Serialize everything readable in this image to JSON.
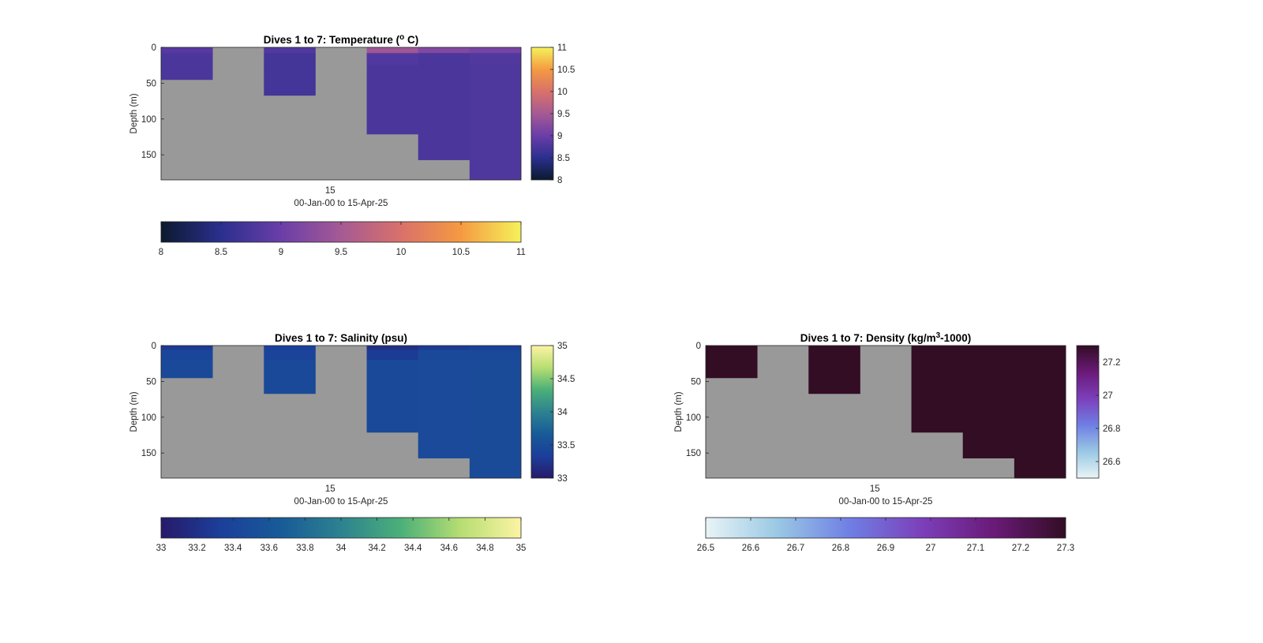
{
  "chart_data": [
    {
      "type": "heatmap",
      "title": "Dives 1 to 7: Temperature (",
      "title_sup": "o",
      "title_end": " C)",
      "ylabel": "Depth (m)",
      "xtick_label": "15",
      "xlabel": "00-Jan-00 to 15-Apr-25",
      "ylim": [
        0,
        185
      ],
      "y_reversed": true,
      "y_ticks": [
        0,
        50,
        100,
        150
      ],
      "n_columns": 7,
      "dive_max_depth": [
        45,
        0,
        67,
        0,
        121,
        157,
        185
      ],
      "background_color": "#999999",
      "value_layers": [
        {
          "top": 0,
          "bottom": 8,
          "values": [
            8.85,
            null,
            8.8,
            null,
            9.45,
            9.2,
            9.1
          ]
        },
        {
          "top": 8,
          "bottom": 25,
          "values": [
            8.75,
            null,
            8.7,
            null,
            8.8,
            8.75,
            8.8
          ]
        },
        {
          "top": 25,
          "bottom": 185,
          "values": [
            8.75,
            null,
            8.7,
            null,
            8.75,
            8.75,
            8.78
          ]
        }
      ],
      "colorbar": {
        "right": {
          "ticks": [
            8,
            8.5,
            9,
            9.5,
            10,
            10.5,
            11
          ],
          "range": [
            8,
            11
          ]
        },
        "bottom": {
          "ticks": [
            8,
            8.5,
            9,
            9.5,
            10,
            10.5,
            11
          ],
          "range": [
            8,
            11
          ]
        },
        "colormap": [
          "#0b1a2e",
          "#2b2f8e",
          "#6a3ea8",
          "#a55a94",
          "#d9716a",
          "#f59a42",
          "#f5f25a"
        ]
      }
    },
    {
      "type": "heatmap",
      "title": "Dives 1 to 7: Salinity (psu)",
      "ylabel": "Depth (m)",
      "xtick_label": "15",
      "xlabel": "00-Jan-00 to 15-Apr-25",
      "ylim": [
        0,
        185
      ],
      "y_reversed": true,
      "y_ticks": [
        0,
        50,
        100,
        150
      ],
      "n_columns": 7,
      "dive_max_depth": [
        45,
        0,
        67,
        0,
        121,
        157,
        185
      ],
      "background_color": "#999999",
      "value_layers": [
        {
          "top": 0,
          "bottom": 6,
          "values": [
            33.3,
            null,
            33.35,
            null,
            33.2,
            33.3,
            33.35
          ]
        },
        {
          "top": 6,
          "bottom": 20,
          "values": [
            33.4,
            null,
            33.38,
            null,
            33.3,
            33.45,
            33.45
          ]
        },
        {
          "top": 20,
          "bottom": 185,
          "values": [
            33.45,
            null,
            33.45,
            null,
            33.45,
            33.47,
            33.48
          ]
        }
      ],
      "colorbar": {
        "right": {
          "ticks": [
            33,
            33.5,
            34,
            34.5,
            35
          ],
          "range": [
            33,
            35
          ]
        },
        "bottom": {
          "ticks": [
            33,
            33.2,
            33.4,
            33.6,
            33.8,
            34,
            34.2,
            34.4,
            34.6,
            34.8,
            35
          ],
          "range": [
            33,
            35
          ]
        },
        "colormap": [
          "#271a6a",
          "#1b3f9a",
          "#185b98",
          "#2d8290",
          "#4bb078",
          "#b7de72",
          "#fcf4a4"
        ]
      }
    },
    {
      "type": "heatmap",
      "title": "Dives 1 to 7: Density (kg/m",
      "title_sup": "3",
      "title_end": "-1000)",
      "ylabel": "Depth (m)",
      "xtick_label": "15",
      "xlabel": "00-Jan-00 to 15-Apr-25",
      "ylim": [
        0,
        185
      ],
      "y_reversed": true,
      "y_ticks": [
        0,
        50,
        100,
        150
      ],
      "n_columns": 7,
      "dive_max_depth": [
        45,
        0,
        67,
        0,
        121,
        157,
        185
      ],
      "background_color": "#999999",
      "value_layers": [
        {
          "top": 0,
          "bottom": 185,
          "values": [
            27.3,
            null,
            27.3,
            null,
            27.3,
            27.3,
            27.3
          ]
        }
      ],
      "colorbar": {
        "right": {
          "ticks": [
            26.6,
            26.8,
            27,
            27.2
          ],
          "range": [
            26.5,
            27.3
          ]
        },
        "bottom": {
          "ticks": [
            26.5,
            26.6,
            26.7,
            26.8,
            26.9,
            27,
            27.1,
            27.2,
            27.3
          ],
          "range": [
            26.5,
            27.3
          ]
        },
        "colormap": [
          "#e8f4f6",
          "#9ac8e4",
          "#6f7fe4",
          "#7c3fba",
          "#6a1a78",
          "#320d24"
        ]
      }
    }
  ]
}
